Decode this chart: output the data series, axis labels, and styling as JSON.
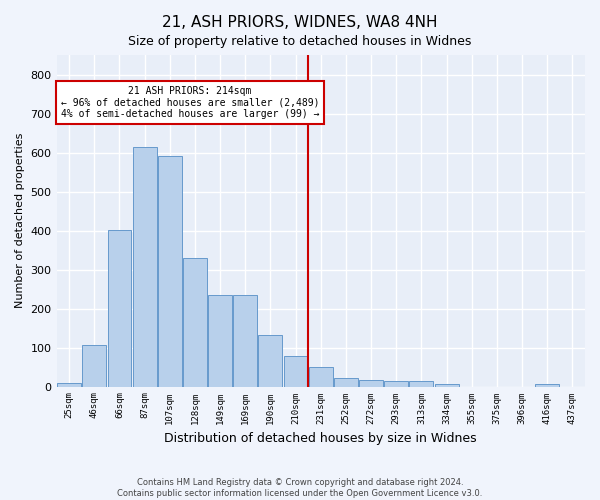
{
  "title": "21, ASH PRIORS, WIDNES, WA8 4NH",
  "subtitle": "Size of property relative to detached houses in Widnes",
  "xlabel": "Distribution of detached houses by size in Widnes",
  "ylabel": "Number of detached properties",
  "categories": [
    "25sqm",
    "46sqm",
    "66sqm",
    "87sqm",
    "107sqm",
    "128sqm",
    "149sqm",
    "169sqm",
    "190sqm",
    "210sqm",
    "231sqm",
    "252sqm",
    "272sqm",
    "293sqm",
    "313sqm",
    "334sqm",
    "355sqm",
    "375sqm",
    "396sqm",
    "416sqm",
    "437sqm"
  ],
  "values": [
    8,
    106,
    402,
    615,
    592,
    330,
    235,
    235,
    133,
    78,
    50,
    22,
    16,
    14,
    14,
    7,
    0,
    0,
    0,
    7,
    0
  ],
  "bar_color": "#b8d0eb",
  "bar_edge_color": "#6699cc",
  "background_color": "#e8eef8",
  "grid_color": "#ffffff",
  "vline_x": 9.5,
  "vline_color": "#cc0000",
  "annotation_text": "21 ASH PRIORS: 214sqm\n← 96% of detached houses are smaller (2,489)\n4% of semi-detached houses are larger (99) →",
  "annotation_box_color": "#ffffff",
  "annotation_box_edge": "#cc0000",
  "footer": "Contains HM Land Registry data © Crown copyright and database right 2024.\nContains public sector information licensed under the Open Government Licence v3.0.",
  "ylim": [
    0,
    850
  ],
  "yticks": [
    0,
    100,
    200,
    300,
    400,
    500,
    600,
    700,
    800
  ]
}
